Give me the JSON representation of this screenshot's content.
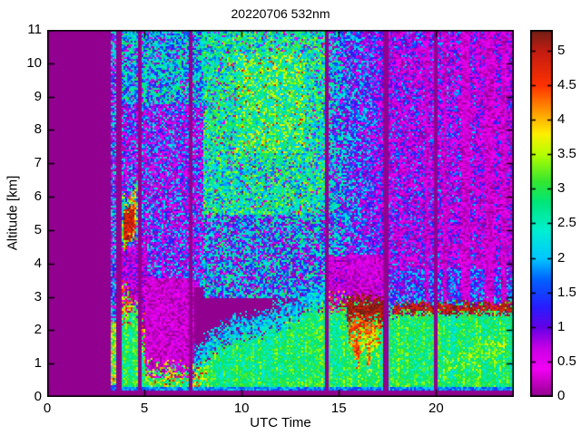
{
  "chart_data": {
    "type": "heatmap",
    "title": "20220706 532nm",
    "xlabel": "UTC Time",
    "ylabel": "Altitude [km]",
    "x_range": [
      0,
      24
    ],
    "y_range": [
      0,
      11
    ],
    "x_ticks": [
      0,
      5,
      10,
      15,
      20
    ],
    "y_ticks": [
      0,
      1,
      2,
      3,
      4,
      5,
      6,
      7,
      8,
      9,
      10,
      11
    ],
    "grid": false,
    "background_value_color": "#92008F",
    "colorbar": {
      "range": [
        0,
        5.3
      ],
      "ticks": [
        0,
        0.5,
        1,
        1.5,
        2,
        2.5,
        3,
        3.5,
        4,
        4.5,
        5
      ],
      "position": "right",
      "colormap_stops": [
        [
          0.0,
          "#92008F"
        ],
        [
          0.4,
          "#F400F4"
        ],
        [
          0.7,
          "#C800E6"
        ],
        [
          1.0,
          "#6400E6"
        ],
        [
          1.3,
          "#281EFF"
        ],
        [
          1.7,
          "#0064FF"
        ],
        [
          2.0,
          "#00C8FF"
        ],
        [
          2.4,
          "#00F0D2"
        ],
        [
          2.8,
          "#00E67D"
        ],
        [
          3.1,
          "#32E632"
        ],
        [
          3.5,
          "#B4FF00"
        ],
        [
          3.8,
          "#FFF000"
        ],
        [
          4.1,
          "#FFA000"
        ],
        [
          4.5,
          "#FF3200"
        ],
        [
          5.0,
          "#C31C12"
        ],
        [
          5.3,
          "#701F16"
        ]
      ]
    },
    "data_start_utc": 3.27,
    "boundary_layer_top_km": [
      [
        3.27,
        3.3
      ],
      [
        4.2,
        3.0
      ],
      [
        4.6,
        2.6
      ],
      [
        4.9,
        2.3
      ],
      [
        5.05,
        0.8
      ],
      [
        7.5,
        0.8
      ],
      [
        7.75,
        1.05
      ],
      [
        8.5,
        1.5
      ],
      [
        9.5,
        1.85
      ],
      [
        11.0,
        2.0
      ],
      [
        12.5,
        2.45
      ],
      [
        13.5,
        2.75
      ],
      [
        14.33,
        2.9
      ],
      [
        15.5,
        2.85
      ],
      [
        17.3,
        2.6
      ],
      [
        18.0,
        2.65
      ],
      [
        20.0,
        2.68
      ],
      [
        22.0,
        2.7
      ],
      [
        24.0,
        2.75
      ]
    ],
    "regions": [
      {
        "name": "upper-early-speckle",
        "t": [
          3.79,
          8.0
        ],
        "alt": [
          3.3,
          11
        ],
        "mean": 1.35,
        "spread": 1.15,
        "sparse": 0.28
      },
      {
        "name": "upper-early-top-green",
        "t": [
          3.79,
          8.0
        ],
        "alt": [
          8.8,
          11
        ],
        "mean": 2.1,
        "spread": 1.0,
        "sparse": 0.15
      },
      {
        "name": "early-attenuated-mid",
        "t": [
          3.79,
          5.1
        ],
        "alt": [
          2.3,
          4.5
        ],
        "mean": 0.7,
        "spread": 0.8,
        "sparse": 0.45
      },
      {
        "name": "upper-midday-green",
        "t": [
          8.0,
          14.33
        ],
        "alt": [
          3.0,
          11
        ],
        "mean": 2.55,
        "spread": 0.95,
        "sparse": 0.07,
        "hot": 0.012
      },
      {
        "name": "midday-lower-mix",
        "t": [
          8.0,
          14.33
        ],
        "alt": [
          3.0,
          5.5
        ],
        "mean": 1.95,
        "spread": 1.15,
        "sparse": 0.2
      },
      {
        "name": "midday-hotspot",
        "t": [
          9.7,
          13.3
        ],
        "alt": [
          7.3,
          10.3
        ],
        "mean": 2.85,
        "spread": 1.0,
        "hot": 0.05
      },
      {
        "name": "afternoon-fade",
        "t": [
          14.52,
          17.3
        ],
        "alt": [
          4.2,
          11
        ],
        "mean": 2.15,
        "meanEnd": 1.05,
        "spread": 0.95,
        "sparse": 0.22
      },
      {
        "name": "afternoon-low-purple",
        "t": [
          14.52,
          17.3
        ],
        "alt": [
          2.95,
          4.2
        ],
        "mean": 0.6,
        "spread": 0.7,
        "sparse": 0.45
      },
      {
        "name": "evening-sparse",
        "t": [
          17.52,
          24
        ],
        "alt": [
          2.8,
          11
        ],
        "mean": 1.15,
        "spread": 0.95,
        "sparse": 0.45
      },
      {
        "name": "evening-sparse-fade",
        "t": [
          22.0,
          24
        ],
        "alt": [
          2.8,
          11
        ],
        "mean": 0.95,
        "spread": 0.85,
        "sparse": 0.58
      },
      {
        "name": "evening-above-layer-blue",
        "t": [
          17.52,
          24
        ],
        "alt": [
          "bl+0.08",
          "bl+1.15"
        ],
        "mean": 1.5,
        "spread": 0.8,
        "sparse": 0.22
      },
      {
        "name": "evening-purple-band-1",
        "t": [
          19.45,
          19.62
        ],
        "alt": [
          "bl+0.05",
          11
        ],
        "mean": 0.4,
        "spread": 0.45,
        "sparse": 0.62
      },
      {
        "name": "evening-purple-band-2",
        "t": [
          20.33,
          20.5
        ],
        "alt": [
          "bl+0.05",
          11
        ],
        "mean": 0.4,
        "spread": 0.45,
        "sparse": 0.62
      },
      {
        "name": "evening-purple-band-3",
        "t": [
          21.3,
          21.78
        ],
        "alt": [
          "bl+0.05",
          11
        ],
        "mean": 0.4,
        "spread": 0.45,
        "sparse": 0.62
      },
      {
        "name": "evening-purple-band-4",
        "t": [
          22.55,
          22.97
        ],
        "alt": [
          "bl+0.05",
          11
        ],
        "mean": 0.4,
        "spread": 0.45,
        "sparse": 0.62
      },
      {
        "name": "evening-purple-band-5",
        "t": [
          23.35,
          23.58
        ],
        "alt": [
          "bl+0.05",
          11
        ],
        "mean": 0.4,
        "spread": 0.45,
        "sparse": 0.62
      },
      {
        "name": "attenuated-above-cloud",
        "t": [
          15.45,
          17.3
        ],
        "alt": [
          2.95,
          4.3
        ],
        "mean": 0.45,
        "spread": 0.5,
        "sparse": 0.5
      },
      {
        "name": "aerosol-layer-green",
        "t": [
          3.79,
          24
        ],
        "alt": [
          0.32,
          "bl"
        ],
        "mean": 2.85,
        "spread": 0.5,
        "ragged": 0.3,
        "stripe": true
      },
      {
        "name": "aerosol-top-cyan-fringe",
        "t": [
          7.55,
          14.33
        ],
        "alt": [
          "bl-0.1",
          "bl+0.45"
        ],
        "mean": 2.1,
        "spread": 0.5,
        "ragged": 0.3
      },
      {
        "name": "morning-layer-red-tips",
        "t": [
          3.82,
          4.4
        ],
        "alt": [
          2.4,
          "bl+0.25"
        ],
        "mean": 3.9,
        "spread": 1.1,
        "sparse": 0.3,
        "ragged": 0.35
      },
      {
        "name": "morning-layer-red-tips-2",
        "t": [
          4.67,
          5.1
        ],
        "alt": [
          1.3,
          2.25
        ],
        "mean": 3.7,
        "spread": 1.2,
        "sparse": 0.35,
        "ragged": 0.35
      },
      {
        "name": "bottom-green-band",
        "t": [
          3.27,
          24
        ],
        "alt": [
          0.3,
          0.62
        ],
        "mean": 2.95,
        "spread": 0.45,
        "stripe": true
      },
      {
        "name": "fog-attenuated-block",
        "t": [
          5.05,
          7.55
        ],
        "alt": [
          0.6,
          3.6
        ],
        "mean": 0.4,
        "spread": 0.45,
        "sparse": 0.52
      },
      {
        "name": "fog-top-spikes",
        "t": [
          5.05,
          8.3
        ],
        "alt": [
          0.32,
          0.82
        ],
        "mean": 3.2,
        "spread": 1.0,
        "hot": 0.12,
        "ragged": 0.4
      },
      {
        "name": "first-profile-column",
        "t": [
          3.27,
          3.55
        ],
        "alt": [
          0.3,
          11
        ],
        "mean": 1.6,
        "spread": 1.2,
        "sparse": 0.22
      },
      {
        "name": "first-profile-low-green",
        "t": [
          3.27,
          3.55
        ],
        "alt": [
          0.4,
          2.3
        ],
        "mean": 3.2,
        "spread": 1.0,
        "hot": 0.1
      },
      {
        "name": "morning-cloud-fringe",
        "t": [
          3.85,
          4.68
        ],
        "alt": [
          4.55,
          5.9
        ],
        "mean": 2.6,
        "spread": 1.2,
        "ragged": 0.3,
        "slant": 0.5
      },
      {
        "name": "morning-cloud-mid",
        "t": [
          3.9,
          4.6
        ],
        "alt": [
          4.6,
          5.7
        ],
        "mean": 4.1,
        "spread": 0.8,
        "ragged": 0.25,
        "slant": 0.5
      },
      {
        "name": "morning-cloud-core",
        "t": [
          3.95,
          4.5
        ],
        "alt": [
          4.65,
          5.5
        ],
        "mean": 4.9,
        "spread": 0.4,
        "ragged": 0.2,
        "slant": 0.5
      },
      {
        "name": "cloud-deck-dark-top",
        "t": [
          15.45,
          17.28
        ],
        "alt": [
          2.3,
          2.97
        ],
        "mean": 5.15,
        "spread": 0.3,
        "ragged": 0.25
      },
      {
        "name": "cloud-deck-red",
        "t": [
          15.5,
          17.15
        ],
        "alt": [
          1.85,
          2.3
        ],
        "mean": 4.5,
        "spread": 0.4,
        "ragged": 0.3
      },
      {
        "name": "cloud-deck-orange",
        "t": [
          15.55,
          16.95
        ],
        "alt": [
          1.5,
          1.85
        ],
        "mean": 3.9,
        "spread": 0.6,
        "ragged": 0.3
      },
      {
        "name": "cloud-virga-1",
        "t": [
          15.82,
          16.03
        ],
        "alt": [
          1.05,
          1.6
        ],
        "mean": 4.4,
        "spread": 0.5,
        "ragged": 0.3
      },
      {
        "name": "cloud-virga-2",
        "t": [
          16.42,
          16.62
        ],
        "alt": [
          0.95,
          1.5
        ],
        "mean": 4.3,
        "spread": 0.5,
        "ragged": 0.3
      },
      {
        "name": "pre-cloud-dark-dots",
        "t": [
          14.52,
          15.45
        ],
        "alt": [
          "bl-0.18",
          "bl+0.12"
        ],
        "mean": 4.6,
        "spread": 0.8,
        "sparse": 0.4,
        "ragged": 0.3
      },
      {
        "name": "evening-layer-dark-top-line",
        "t": [
          17.8,
          23.95
        ],
        "alt": [
          2.56,
          2.8
        ],
        "mean": 5.0,
        "spread": 0.35,
        "ragged": 0.15
      },
      {
        "name": "evening-yellow-streak",
        "t": [
          20.4,
          23.6
        ],
        "alt": [
          0.75,
          1.05
        ],
        "mean": 3.3,
        "spread": 0.5,
        "ragged": 0.3,
        "slant": 0.22
      },
      {
        "name": "surface-cyan-line",
        "t": [
          3.27,
          24
        ],
        "alt": [
          0.2,
          0.3
        ],
        "mean": 1.8,
        "spread": 0.4
      },
      {
        "name": "below-surface-purple",
        "t": [
          0,
          24
        ],
        "alt": [
          0,
          0.2
        ],
        "zero": true
      },
      {
        "name": "gap-1",
        "t": [
          3.55,
          3.79
        ],
        "alt": [
          0,
          11
        ],
        "zero": true
      },
      {
        "name": "gap-2",
        "t": [
          4.67,
          4.81
        ],
        "alt": [
          0,
          11
        ],
        "zero": true
      },
      {
        "name": "gap-3",
        "t": [
          7.28,
          7.45
        ],
        "alt": [
          0,
          11
        ],
        "zero": true
      },
      {
        "name": "gap-4",
        "t": [
          14.33,
          14.52
        ],
        "alt": [
          0,
          11
        ],
        "zero": true
      },
      {
        "name": "gap-5",
        "t": [
          17.3,
          17.52
        ],
        "alt": [
          0,
          11
        ],
        "zero": true
      },
      {
        "name": "gap-6",
        "t": [
          19.93,
          20.04
        ],
        "alt": [
          0,
          11
        ],
        "zero": true
      },
      {
        "name": "no-data-before-start",
        "t": [
          0,
          3.27
        ],
        "alt": [
          0,
          11
        ],
        "zero": true
      }
    ]
  }
}
